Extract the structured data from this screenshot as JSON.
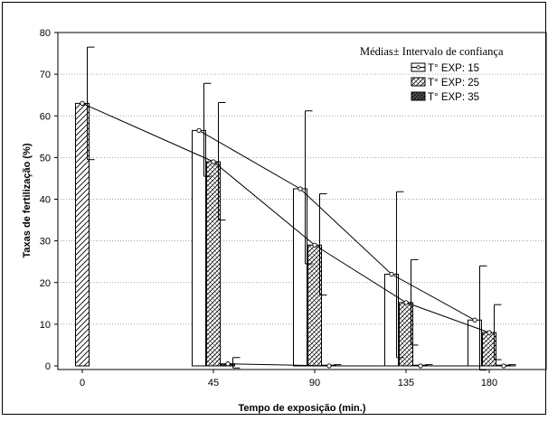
{
  "chart_data": {
    "type": "bar",
    "xlabel": "Tempo de exposição (min.)",
    "ylabel": "Taxas de fertilização (%)",
    "ylim": [
      0,
      80
    ],
    "yticks": [
      0,
      10,
      20,
      30,
      40,
      50,
      60,
      70,
      80
    ],
    "categories": [
      "0",
      "45",
      "90",
      "135",
      "180"
    ],
    "grid": true,
    "legend": {
      "title": "Médias± Intervalo de confiança",
      "position": "top-right"
    },
    "series": [
      {
        "name": "T° EXP: 15",
        "pattern": "open",
        "values": [
          null,
          56.5,
          42.5,
          22.0,
          11.0
        ],
        "ci_lower": [
          null,
          45.5,
          24.5,
          2.0,
          -1.0
        ],
        "ci_upper": [
          null,
          67.8,
          61.2,
          41.8,
          24.0
        ]
      },
      {
        "name": "T° EXP: 25",
        "pattern": "hatched-grid",
        "values": [
          63.0,
          49.0,
          29.0,
          15.2,
          8.0
        ],
        "ci_lower": [
          49.5,
          35.0,
          17.0,
          5.0,
          1.5
        ],
        "ci_upper": [
          76.5,
          63.2,
          41.3,
          25.5,
          14.7
        ]
      },
      {
        "name": "T° EXP: 35",
        "pattern": "dark-hatched",
        "values": [
          null,
          0.5,
          0.0,
          0.0,
          0.0
        ],
        "ci_lower": [
          null,
          -0.5,
          0.0,
          0.0,
          0.0
        ],
        "ci_upper": [
          null,
          2.0,
          0.3,
          0.3,
          0.3
        ]
      }
    ]
  }
}
